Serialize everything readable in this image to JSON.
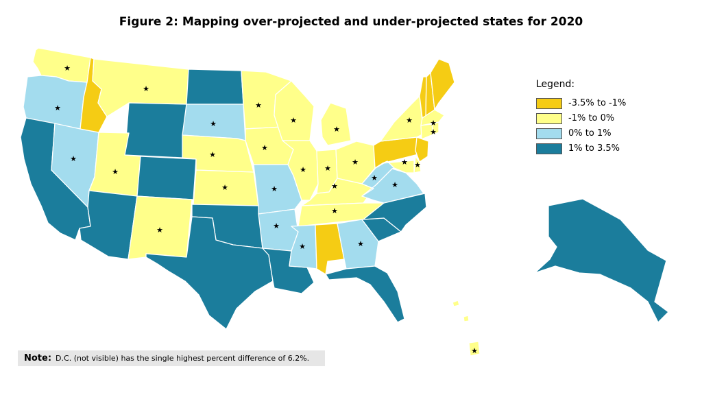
{
  "title": "Figure 2: Mapping over-projected and under-projected states for 2020",
  "legend": {
    "title": "Legend:",
    "items": [
      {
        "key": "c1",
        "label": "-3.5% to -1%",
        "color": "#f5cc14"
      },
      {
        "key": "c2",
        "label": "-1% to 0%",
        "color": "#ffff8a"
      },
      {
        "key": "c3",
        "label": "0% to 1%",
        "color": "#a3dcee"
      },
      {
        "key": "c4",
        "label": "1% to 3.5%",
        "color": "#1b7d9c"
      }
    ]
  },
  "note": {
    "label": "Note:",
    "text": "D.C. (not visible) has the single highest percent difference of 6.2%."
  },
  "star_symbol": "★",
  "states": [
    {
      "id": "WA",
      "category": "c2",
      "star": true
    },
    {
      "id": "OR",
      "category": "c3",
      "star": true
    },
    {
      "id": "CA",
      "category": "c4",
      "star": false
    },
    {
      "id": "NV",
      "category": "c3",
      "star": true
    },
    {
      "id": "ID",
      "category": "c1",
      "star": false
    },
    {
      "id": "MT",
      "category": "c2",
      "star": true
    },
    {
      "id": "WY",
      "category": "c4",
      "star": false
    },
    {
      "id": "UT",
      "category": "c2",
      "star": true
    },
    {
      "id": "AZ",
      "category": "c4",
      "star": false
    },
    {
      "id": "CO",
      "category": "c4",
      "star": false
    },
    {
      "id": "NM",
      "category": "c2",
      "star": true
    },
    {
      "id": "ND",
      "category": "c4",
      "star": false
    },
    {
      "id": "SD",
      "category": "c3",
      "star": true
    },
    {
      "id": "NE",
      "category": "c2",
      "star": true
    },
    {
      "id": "KS",
      "category": "c2",
      "star": true
    },
    {
      "id": "OK",
      "category": "c4",
      "star": false
    },
    {
      "id": "TX",
      "category": "c4",
      "star": false
    },
    {
      "id": "MN",
      "category": "c2",
      "star": true
    },
    {
      "id": "IA",
      "category": "c2",
      "star": true
    },
    {
      "id": "MO",
      "category": "c3",
      "star": true
    },
    {
      "id": "AR",
      "category": "c3",
      "star": true
    },
    {
      "id": "LA",
      "category": "c4",
      "star": false
    },
    {
      "id": "WI",
      "category": "c2",
      "star": true
    },
    {
      "id": "IL",
      "category": "c2",
      "star": true
    },
    {
      "id": "MI",
      "category": "c2",
      "star": true
    },
    {
      "id": "IN",
      "category": "c2",
      "star": true
    },
    {
      "id": "OH",
      "category": "c2",
      "star": true
    },
    {
      "id": "KY",
      "category": "c2",
      "star": true
    },
    {
      "id": "TN",
      "category": "c2",
      "star": true
    },
    {
      "id": "MS",
      "category": "c3",
      "star": true
    },
    {
      "id": "AL",
      "category": "c1",
      "star": false
    },
    {
      "id": "GA",
      "category": "c3",
      "star": true
    },
    {
      "id": "FL",
      "category": "c4",
      "star": false
    },
    {
      "id": "SC",
      "category": "c4",
      "star": false
    },
    {
      "id": "NC",
      "category": "c4",
      "star": false
    },
    {
      "id": "VA",
      "category": "c3",
      "star": true
    },
    {
      "id": "WV",
      "category": "c3",
      "star": true
    },
    {
      "id": "PA",
      "category": "c1",
      "star": false
    },
    {
      "id": "NY",
      "category": "c2",
      "star": true
    },
    {
      "id": "VT",
      "category": "c1",
      "star": false
    },
    {
      "id": "NH",
      "category": "c1",
      "star": false
    },
    {
      "id": "ME",
      "category": "c1",
      "star": false
    },
    {
      "id": "MA",
      "category": "c2",
      "star": true
    },
    {
      "id": "CT",
      "category": "c2",
      "star": true
    },
    {
      "id": "RI",
      "category": "c2",
      "star": false
    },
    {
      "id": "NJ",
      "category": "c1",
      "star": false
    },
    {
      "id": "DE",
      "category": "c2",
      "star": true
    },
    {
      "id": "MD",
      "category": "c2",
      "star": true
    },
    {
      "id": "AK",
      "category": "c4",
      "star": false
    },
    {
      "id": "HI",
      "category": "c2",
      "star": true
    }
  ]
}
